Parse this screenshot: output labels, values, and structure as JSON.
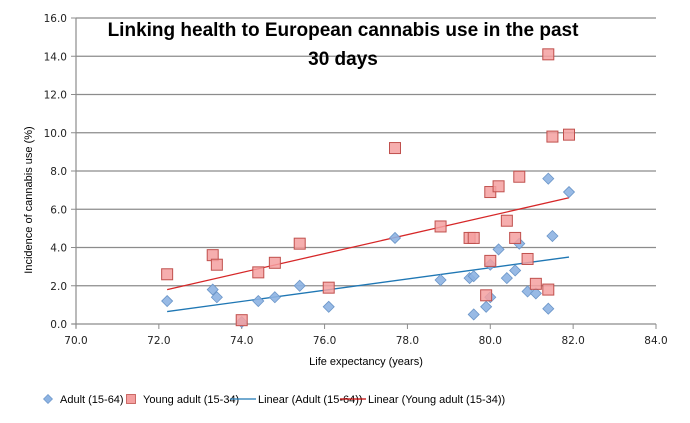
{
  "chart_data": {
    "type": "scatter",
    "title": "Linking health to European cannabis use in the past 30 days",
    "title_lines": [
      "Linking health to European cannabis use in the past",
      "30 days"
    ],
    "xlabel": "Life expectancy (years)",
    "ylabel": "Incidence of cannabis  use (%)",
    "xlim": [
      70,
      84
    ],
    "ylim": [
      0,
      16
    ],
    "xticks": [
      70,
      72,
      74,
      76,
      78,
      80,
      82,
      84
    ],
    "yticks": [
      0,
      2,
      4,
      6,
      8,
      10,
      12,
      14,
      16
    ],
    "xtick_labels": [
      "70.0",
      "72.0",
      "74.0",
      "76.0",
      "78.0",
      "80.0",
      "82.0",
      "84.0"
    ],
    "ytick_labels": [
      "0.0",
      "2.0",
      "4.0",
      "6.0",
      "8.0",
      "10.0",
      "12.0",
      "14.0",
      "16.0"
    ],
    "grid": "horizontal",
    "legend_position": "bottom",
    "series": [
      {
        "name": "Adult (15-64)",
        "marker": "diamond",
        "color": "#8db3e2",
        "edge": "#6a95c8",
        "points": [
          [
            72.2,
            1.2
          ],
          [
            73.3,
            1.8
          ],
          [
            73.4,
            1.4
          ],
          [
            74.0,
            0.1
          ],
          [
            74.4,
            1.2
          ],
          [
            74.8,
            1.4
          ],
          [
            75.4,
            2.0
          ],
          [
            76.1,
            0.9
          ],
          [
            77.7,
            4.5
          ],
          [
            78.8,
            2.3
          ],
          [
            79.5,
            2.4
          ],
          [
            79.6,
            2.5
          ],
          [
            79.6,
            0.5
          ],
          [
            79.9,
            0.9
          ],
          [
            80.0,
            1.4
          ],
          [
            80.0,
            3.1
          ],
          [
            80.2,
            3.9
          ],
          [
            80.4,
            2.4
          ],
          [
            80.6,
            2.8
          ],
          [
            80.7,
            4.2
          ],
          [
            80.9,
            1.7
          ],
          [
            81.1,
            1.6
          ],
          [
            81.4,
            0.8
          ],
          [
            81.4,
            7.6
          ],
          [
            81.5,
            4.6
          ],
          [
            81.9,
            6.9
          ]
        ]
      },
      {
        "name": "Young adult (15-34)",
        "marker": "square",
        "color": "#f4a0a0",
        "edge": "#c0504d",
        "points": [
          [
            72.2,
            2.6
          ],
          [
            73.3,
            3.6
          ],
          [
            73.4,
            3.1
          ],
          [
            74.0,
            0.2
          ],
          [
            74.4,
            2.7
          ],
          [
            74.8,
            3.2
          ],
          [
            75.4,
            4.2
          ],
          [
            76.1,
            1.9
          ],
          [
            77.7,
            9.2
          ],
          [
            78.8,
            5.1
          ],
          [
            79.5,
            4.5
          ],
          [
            79.6,
            4.5
          ],
          [
            79.9,
            1.5
          ],
          [
            80.0,
            3.3
          ],
          [
            80.0,
            6.9
          ],
          [
            80.2,
            7.2
          ],
          [
            80.4,
            5.4
          ],
          [
            80.6,
            4.5
          ],
          [
            80.7,
            7.7
          ],
          [
            80.9,
            3.4
          ],
          [
            81.1,
            2.1
          ],
          [
            81.4,
            1.8
          ],
          [
            81.4,
            14.1
          ],
          [
            81.5,
            9.8
          ],
          [
            81.9,
            9.9
          ]
        ]
      },
      {
        "name": "Linear (Adult (15-64))",
        "type": "trendline",
        "color": "#1f77b4",
        "x": [
          72.2,
          81.9
        ],
        "y": [
          0.65,
          3.5
        ]
      },
      {
        "name": "Linear (Young adult (15-34))",
        "type": "trendline",
        "color": "#d62728",
        "x": [
          72.2,
          81.9
        ],
        "y": [
          1.8,
          6.6
        ]
      }
    ]
  },
  "legend": {
    "items": [
      {
        "label": "Adult (15-64)",
        "kind": "diamond",
        "color": "#8db3e2"
      },
      {
        "label": "Young adult (15-34)",
        "kind": "square",
        "color": "#f4a0a0"
      },
      {
        "label": "Linear (Adult (15-64))",
        "kind": "line",
        "color": "#1f77b4"
      },
      {
        "label": "Linear (Young adult (15-34))",
        "kind": "line",
        "color": "#c00000"
      }
    ]
  },
  "colors": {
    "gridline": "#8c8c8c",
    "axis": "#8c8c8c"
  }
}
